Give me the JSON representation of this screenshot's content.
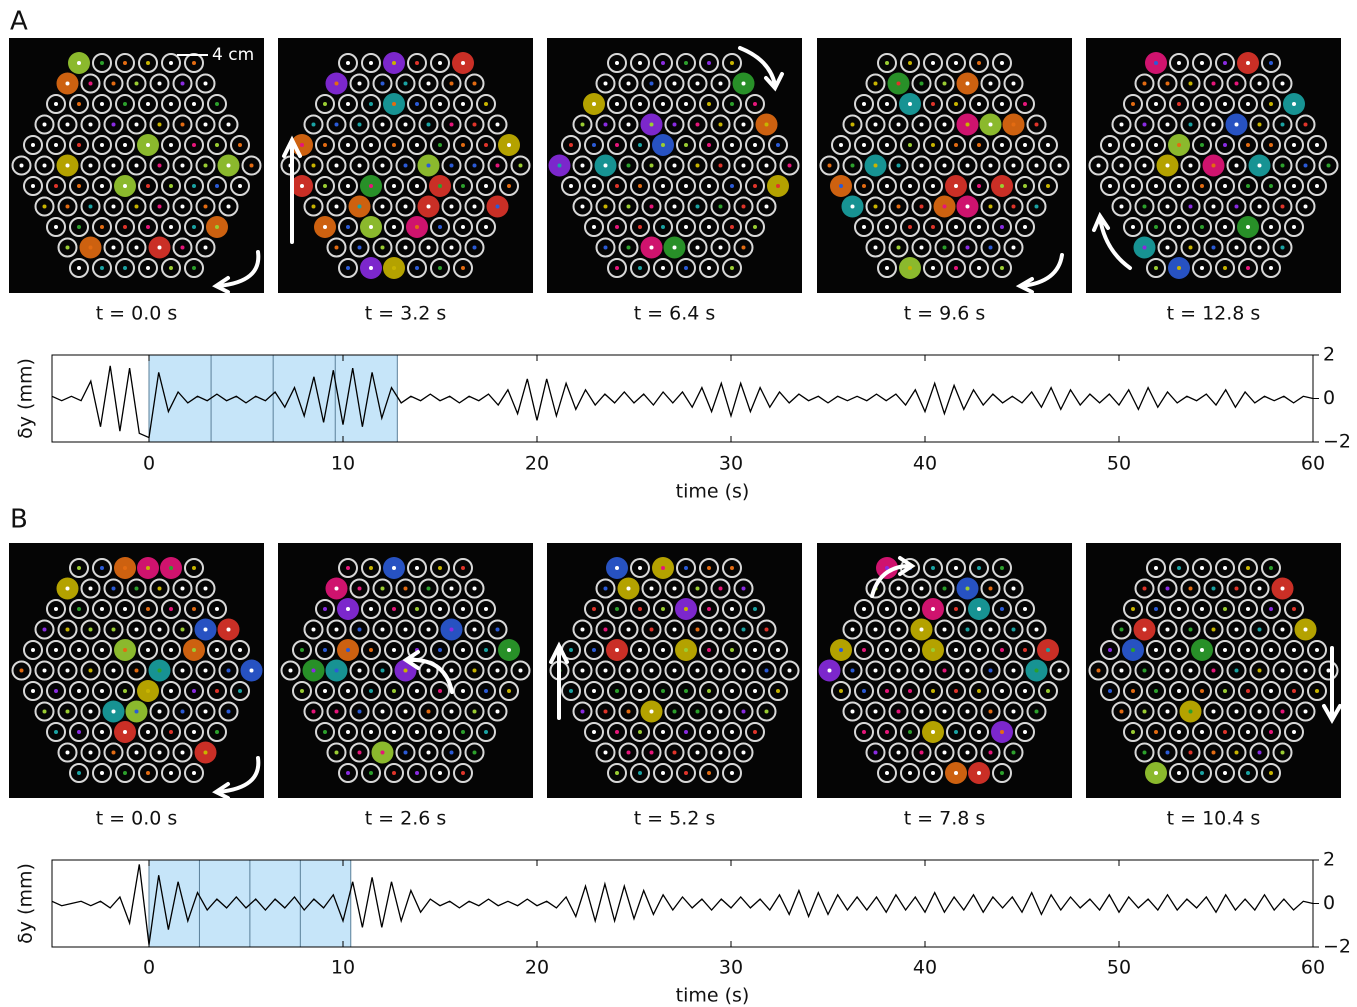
{
  "panels": [
    {
      "label": "A",
      "scale_bar": "4 cm",
      "frames": [
        "t = 0.0 s",
        "t = 3.2 s",
        "t = 6.4 s",
        "t = 9.6 s",
        "t = 12.8 s"
      ]
    },
    {
      "label": "B",
      "frames": [
        "t = 0.0 s",
        "t = 2.6 s",
        "t = 5.2 s",
        "t = 7.8 s",
        "t = 10.4 s"
      ]
    }
  ],
  "chart_data": [
    {
      "type": "line",
      "xlabel": "time (s)",
      "ylabel": "δy (mm)",
      "color": "#000000",
      "highlight_color": "#c6e5f9",
      "highlight": [
        0,
        12.8
      ],
      "dividers": [
        3.2,
        6.4,
        9.6
      ],
      "xlim": [
        -5,
        60
      ],
      "xticks": [
        0,
        10,
        20,
        30,
        40,
        50,
        60
      ],
      "ylim": [
        -2,
        2
      ],
      "yticks": [
        {
          "value": -2,
          "label": "−2"
        },
        0,
        2
      ],
      "x": [
        -5,
        -4.5,
        -4,
        -3.5,
        -3,
        -2.5,
        -2,
        -1.5,
        -1,
        -0.5,
        0,
        0.5,
        1,
        1.5,
        2,
        2.5,
        3,
        3.5,
        4,
        4.5,
        5,
        5.5,
        6,
        6.5,
        7,
        7.5,
        8,
        8.5,
        9,
        9.5,
        10,
        10.5,
        11,
        11.5,
        12,
        12.5,
        13,
        13.5,
        14,
        14.5,
        15,
        15.5,
        16,
        16.5,
        17,
        17.5,
        18,
        18.5,
        19,
        19.5,
        20,
        20.5,
        21,
        21.5,
        22,
        22.5,
        23,
        23.5,
        24,
        24.5,
        25,
        25.5,
        26,
        26.5,
        27,
        27.5,
        28,
        28.5,
        29,
        29.5,
        30,
        30.5,
        31,
        31.5,
        32,
        32.5,
        33,
        33.5,
        34,
        34.5,
        35,
        35.5,
        36,
        36.5,
        37,
        37.5,
        38,
        38.5,
        39,
        39.5,
        40,
        40.5,
        41,
        41.5,
        42,
        42.5,
        43,
        43.5,
        44,
        44.5,
        45,
        45.5,
        46,
        46.5,
        47,
        47.5,
        48,
        48.5,
        49,
        49.5,
        50,
        50.5,
        51,
        51.5,
        52,
        52.5,
        53,
        53.5,
        54,
        54.5,
        55,
        55.5,
        56,
        56.5,
        57,
        57.5,
        58,
        58.5,
        59,
        59.5,
        60
      ],
      "values": [
        0.1,
        -0.1,
        0.1,
        -0.1,
        0.8,
        -1.3,
        1.5,
        -1.5,
        1.4,
        -1.6,
        -1.8,
        1.2,
        -0.6,
        0.3,
        -0.2,
        0.1,
        -0.1,
        0.2,
        -0.1,
        0.1,
        -0.2,
        0.1,
        -0.1,
        0.3,
        -0.4,
        0.5,
        -0.8,
        1.0,
        -1.1,
        1.3,
        -1.2,
        1.4,
        -1.3,
        1.2,
        -0.9,
        0.5,
        -0.2,
        0.1,
        -0.1,
        0.2,
        -0.1,
        0.1,
        -0.2,
        0.1,
        -0.1,
        0.2,
        -0.3,
        0.4,
        -0.7,
        0.9,
        -1.0,
        0.9,
        -0.8,
        0.7,
        -0.5,
        0.4,
        -0.3,
        0.2,
        -0.2,
        0.3,
        -0.2,
        0.2,
        -0.3,
        0.3,
        -0.2,
        0.3,
        -0.4,
        0.5,
        -0.6,
        0.7,
        -0.8,
        0.7,
        -0.6,
        0.5,
        -0.4,
        0.3,
        -0.2,
        0.2,
        -0.1,
        0.1,
        -0.2,
        0.1,
        -0.1,
        0.1,
        -0.1,
        0.2,
        -0.1,
        0.2,
        -0.3,
        0.4,
        -0.6,
        0.7,
        -0.7,
        0.6,
        -0.5,
        0.4,
        -0.3,
        0.2,
        -0.2,
        0.1,
        -0.2,
        0.3,
        -0.4,
        0.5,
        -0.5,
        0.4,
        -0.3,
        0.2,
        -0.2,
        0.2,
        -0.3,
        0.4,
        -0.5,
        0.5,
        -0.4,
        0.3,
        -0.2,
        0.1,
        -0.1,
        0.2,
        -0.3,
        0.4,
        -0.4,
        0.3,
        -0.2,
        0.1,
        -0.1,
        0.1,
        -0.2,
        0.1,
        0.0
      ]
    },
    {
      "type": "line",
      "xlabel": "time (s)",
      "ylabel": "δy (mm)",
      "color": "#000000",
      "highlight_color": "#c6e5f9",
      "highlight": [
        0,
        10.4
      ],
      "dividers": [
        2.6,
        5.2,
        7.8
      ],
      "xlim": [
        -5,
        60
      ],
      "xticks": [
        0,
        10,
        20,
        30,
        40,
        50,
        60
      ],
      "ylim": [
        -2,
        2
      ],
      "yticks": [
        {
          "value": -2,
          "label": "−2"
        },
        0,
        2
      ],
      "x": [
        -5,
        -4.5,
        -4,
        -3.5,
        -3,
        -2.5,
        -2,
        -1.5,
        -1,
        -0.5,
        0,
        0.5,
        1,
        1.5,
        2,
        2.5,
        3,
        3.5,
        4,
        4.5,
        5,
        5.5,
        6,
        6.5,
        7,
        7.5,
        8,
        8.5,
        9,
        9.5,
        10,
        10.5,
        11,
        11.5,
        12,
        12.5,
        13,
        13.5,
        14,
        14.5,
        15,
        15.5,
        16,
        16.5,
        17,
        17.5,
        18,
        18.5,
        19,
        19.5,
        20,
        20.5,
        21,
        21.5,
        22,
        22.5,
        23,
        23.5,
        24,
        24.5,
        25,
        25.5,
        26,
        26.5,
        27,
        27.5,
        28,
        28.5,
        29,
        29.5,
        30,
        30.5,
        31,
        31.5,
        32,
        32.5,
        33,
        33.5,
        34,
        34.5,
        35,
        35.5,
        36,
        36.5,
        37,
        37.5,
        38,
        38.5,
        39,
        39.5,
        40,
        40.5,
        41,
        41.5,
        42,
        42.5,
        43,
        43.5,
        44,
        44.5,
        45,
        45.5,
        46,
        46.5,
        47,
        47.5,
        48,
        48.5,
        49,
        49.5,
        50,
        50.5,
        51,
        51.5,
        52,
        52.5,
        53,
        53.5,
        54,
        54.5,
        55,
        55.5,
        56,
        56.5,
        57,
        57.5,
        58,
        58.5,
        59,
        59.5,
        60
      ],
      "values": [
        0.1,
        -0.1,
        0.0,
        0.1,
        -0.1,
        0.1,
        -0.2,
        0.3,
        -0.9,
        1.8,
        -1.9,
        1.3,
        -1.2,
        1.0,
        -0.8,
        0.5,
        -0.3,
        0.2,
        -0.2,
        0.3,
        -0.2,
        0.2,
        -0.3,
        0.2,
        -0.2,
        0.3,
        -0.3,
        0.2,
        -0.2,
        0.4,
        -0.8,
        1.0,
        -1.1,
        1.2,
        -1.1,
        1.0,
        -0.8,
        0.6,
        -0.4,
        0.2,
        -0.1,
        0.1,
        -0.2,
        0.1,
        -0.1,
        0.2,
        -0.1,
        0.1,
        -0.1,
        0.2,
        -0.1,
        0.1,
        -0.2,
        0.3,
        -0.6,
        0.8,
        -0.8,
        0.9,
        -0.8,
        0.8,
        -0.7,
        0.6,
        -0.5,
        0.4,
        -0.3,
        0.3,
        -0.2,
        0.2,
        -0.3,
        0.2,
        -0.2,
        0.3,
        -0.2,
        0.2,
        -0.3,
        0.4,
        -0.5,
        0.6,
        -0.6,
        0.5,
        -0.5,
        0.4,
        -0.3,
        0.3,
        -0.3,
        0.3,
        -0.4,
        0.4,
        -0.3,
        0.3,
        -0.4,
        0.5,
        -0.4,
        0.3,
        -0.3,
        0.4,
        -0.4,
        0.3,
        -0.2,
        0.3,
        -0.4,
        0.5,
        -0.5,
        0.4,
        -0.3,
        0.3,
        -0.2,
        0.2,
        -0.3,
        0.4,
        -0.4,
        0.3,
        -0.2,
        0.2,
        -0.3,
        0.4,
        -0.3,
        0.2,
        -0.2,
        0.3,
        -0.4,
        0.4,
        -0.3,
        0.2,
        -0.3,
        0.4,
        -0.3,
        0.2,
        -0.3,
        0.1,
        0.0
      ]
    }
  ]
}
